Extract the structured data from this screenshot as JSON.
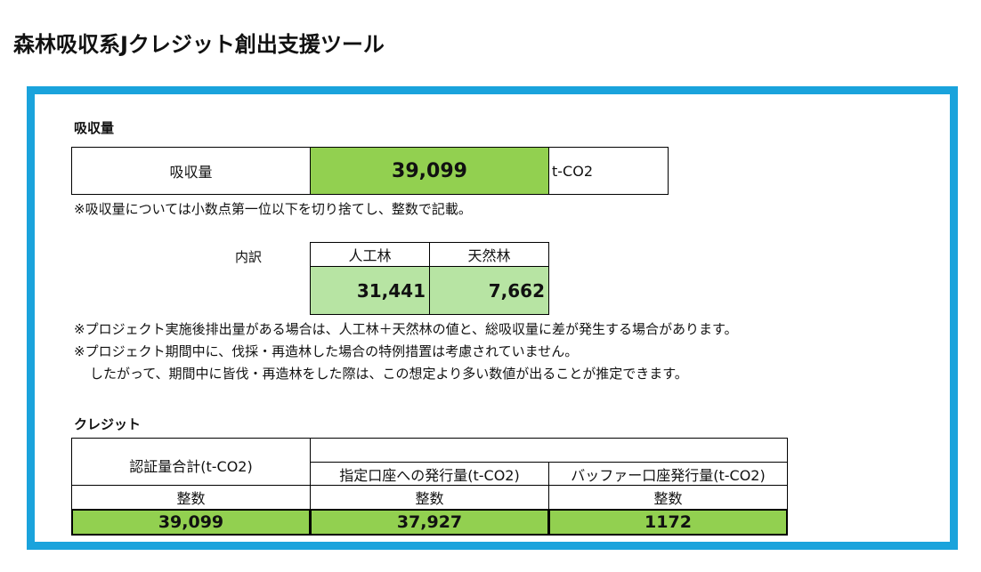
{
  "header": {
    "title": "森林吸収系Jクレジット創出支援ツール"
  },
  "absorption": {
    "heading": "吸収量",
    "label": "吸収量",
    "value": "39,099",
    "unit": "t-CO2",
    "note": "※吸収量については小数点第一位以下を切り捨てし、整数で記載。"
  },
  "breakdown": {
    "label": "内訳",
    "columns": [
      "人工林",
      "天然林"
    ],
    "values": [
      "31,441",
      "7,662"
    ]
  },
  "notes": [
    "※プロジェクト実施後排出量がある場合は、人工林＋天然林の値と、総吸収量に差が発生する場合があります。",
    "※プロジェクト期間中に、伐採・再造林した場合の特例措置は考慮されていません。",
    "したがって、期間中に皆伐・再造林をした際は、この想定より多い数値が出ることが推定できます。"
  ],
  "credit": {
    "heading": "クレジット",
    "columns": [
      "認証量合計(t-CO2)",
      "指定口座への発行量(t-CO2)",
      "バッファー口座発行量(t-CO2)"
    ],
    "subheaders": [
      "整数",
      "整数",
      "整数"
    ],
    "values": [
      "39,099",
      "37,927",
      "1172"
    ]
  }
}
